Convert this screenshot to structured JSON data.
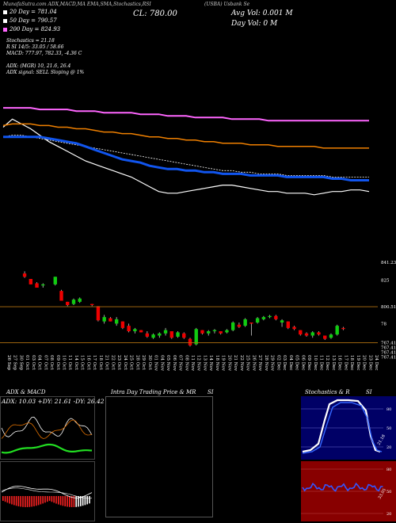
{
  "header": {
    "chart_caption": "(USBA) Usbank Se",
    "stock_label": "USBA",
    "tabs_caption": "MunafaSutra.com ADX,MACD,MA EMA,SMA,Stochastics,RSI",
    "close_text": "CL: 780.00",
    "avg_vol_text": "Avg Vol: 0.001 M",
    "day_vol_text": "Day Vol: 0  M"
  },
  "legend": [
    {
      "text": "20  Day = 781.04",
      "color": "#ffffff"
    },
    {
      "text": "50  Day = 790.57",
      "color": "#ffffff"
    },
    {
      "text": "200  Day = 824.93",
      "color": "#ff66ff"
    }
  ],
  "indicators": {
    "stoch_text": "Stochastics = 21.18",
    "rsi_text": "R                        SI 14/5: 33.05 / 58.66",
    "macd_text": "MACD: 777.97,  782.33,  -4.36  C",
    "adx_text": "ADX:                        (MGR) 10,  21.6,  26.4",
    "adx_signal_text": "ADX  signal: SELL Sloping @ 1%"
  },
  "price_labels": [
    "841.23",
    "825",
    "800.51",
    "78",
    "767.41",
    "767.41",
    "767.41",
    "767.41"
  ],
  "date_labels": [
    "26 Sep",
    "27 Sep",
    "30 Sep",
    "01 Oct",
    "03 Oct",
    "04 Oct",
    "07 Oct",
    "08 Oct",
    "09 Oct",
    "10 Oct",
    "11 Oct",
    "14 Oct",
    "15 Oct",
    "16 Oct",
    "17 Oct",
    "18 Oct",
    "21 Oct",
    "22 Oct",
    "23 Oct",
    "24 Oct",
    "25 Oct",
    "28 Oct",
    "29 Oct",
    "30 Oct",
    "01 Nov",
    "04 Nov",
    "05 Nov",
    "06 Nov",
    "07 Nov",
    "08 Nov",
    "11 Nov",
    "12 Nov",
    "13 Nov",
    "14 Nov",
    "18 Nov",
    "19 Nov",
    "20 Nov",
    "21 Nov",
    "22 Nov",
    "25 Nov",
    "26 Nov",
    "27 Nov",
    "28 Nov",
    "29 Nov",
    "02 Dec",
    "03 Dec",
    "04 Dec",
    "05 Dec",
    "06 Dec",
    "09 Dec",
    "10 Dec",
    "11 Dec",
    "12 Dec",
    "13 Dec",
    "16 Dec",
    "17 Dec",
    "18 Dec",
    "19 Dec",
    "20 Dec",
    "23 Dec",
    "24 Dec"
  ],
  "panels": {
    "adx": {
      "title": "ADX  & MACD",
      "values_text": "ADX: 10.03  +DY: 21.61  -DY: 26.42"
    },
    "intraday": {
      "title": "Intra  Day Trading Price  & MR",
      "si_text": "SI"
    },
    "stoch": {
      "title": "Stochastics  & R",
      "si_text": "SI",
      "level_labels": [
        "80",
        "50",
        "20"
      ],
      "value_label": "21.18",
      "rsi_level_labels": [
        "80",
        "50",
        "20"
      ],
      "rsi_value_label": "33.05"
    }
  },
  "colors": {
    "up": "#11cc11",
    "down": "#ee0000",
    "ma20": "#ffffff",
    "ma50": "#f08000",
    "ma200": "#ee33ee",
    "ma_blue": "#1155ee",
    "stoch_bg": "#000066",
    "rsi_bg": "#880000"
  },
  "chart_data": {
    "type": "candlestick",
    "price_axis_ticks": [
      841.23,
      825,
      800.51,
      78,
      767.41
    ],
    "candles": [
      {
        "date": "01 Oct",
        "open": 831,
        "high": 833,
        "low": 827,
        "close": 828
      },
      {
        "date": "03 Oct",
        "open": 826,
        "high": 826,
        "low": 821,
        "close": 821
      },
      {
        "date": "04 Oct",
        "open": 822,
        "high": 823,
        "low": 818,
        "close": 818
      },
      {
        "date": "07 Oct",
        "open": 820,
        "high": 822,
        "low": 818,
        "close": 821
      },
      {
        "date": "09 Oct",
        "open": 821,
        "high": 828,
        "low": 820,
        "close": 828
      },
      {
        "date": "10 Oct",
        "open": 815,
        "high": 816,
        "low": 806,
        "close": 806
      },
      {
        "date": "11 Oct",
        "open": 805,
        "high": 805,
        "low": 801,
        "close": 802
      },
      {
        "date": "14 Oct",
        "open": 803,
        "high": 808,
        "low": 802,
        "close": 807
      },
      {
        "date": "15 Oct",
        "open": 805,
        "high": 809,
        "low": 804,
        "close": 808
      },
      {
        "date": "17 Oct",
        "open": 803,
        "high": 803,
        "low": 801,
        "close": 802
      },
      {
        "date": "18 Oct",
        "open": 801,
        "high": 801,
        "low": 787,
        "close": 788
      },
      {
        "date": "21 Oct",
        "open": 787,
        "high": 793,
        "low": 785,
        "close": 791
      },
      {
        "date": "22 Oct",
        "open": 790,
        "high": 791,
        "low": 787,
        "close": 787
      },
      {
        "date": "23 Oct",
        "open": 785,
        "high": 791,
        "low": 783,
        "close": 789
      },
      {
        "date": "24 Oct",
        "open": 787,
        "high": 787,
        "low": 780,
        "close": 781
      },
      {
        "date": "25 Oct",
        "open": 783,
        "high": 785,
        "low": 777,
        "close": 778
      },
      {
        "date": "28 Oct",
        "open": 778,
        "high": 781,
        "low": 776,
        "close": 780
      },
      {
        "date": "29 Oct",
        "open": 779,
        "high": 779,
        "low": 777,
        "close": 777
      },
      {
        "date": "30 Oct",
        "open": 776,
        "high": 778,
        "low": 772,
        "close": 773
      },
      {
        "date": "01 Nov",
        "open": 772,
        "high": 776,
        "low": 771,
        "close": 775
      },
      {
        "date": "04 Nov",
        "open": 774,
        "high": 777,
        "low": 772,
        "close": 776
      },
      {
        "date": "05 Nov",
        "open": 776,
        "high": 781,
        "low": 774,
        "close": 779
      },
      {
        "date": "06 Nov",
        "open": 778,
        "high": 778,
        "low": 771,
        "close": 772
      },
      {
        "date": "07 Nov",
        "open": 773,
        "high": 778,
        "low": 772,
        "close": 777
      },
      {
        "date": "08 Nov",
        "open": 776,
        "high": 777,
        "low": 771,
        "close": 772
      },
      {
        "date": "11 Nov",
        "open": 771,
        "high": 772,
        "low": 764,
        "close": 765
      },
      {
        "date": "12 Nov",
        "open": 766,
        "high": 781,
        "low": 765,
        "close": 780
      },
      {
        "date": "13 Nov",
        "open": 779,
        "high": 779,
        "low": 775,
        "close": 776
      },
      {
        "date": "14 Nov",
        "open": 776,
        "high": 779,
        "low": 774,
        "close": 778
      },
      {
        "date": "18 Nov",
        "open": 778,
        "high": 780,
        "low": 776,
        "close": 779
      },
      {
        "date": "19 Nov",
        "open": 778,
        "high": 778,
        "low": 775,
        "close": 776
      },
      {
        "date": "20 Nov",
        "open": 777,
        "high": 780,
        "low": 776,
        "close": 779
      },
      {
        "date": "21 Nov",
        "open": 779,
        "high": 787,
        "low": 778,
        "close": 786
      },
      {
        "date": "22 Nov",
        "open": 784,
        "high": 786,
        "low": 781,
        "close": 782
      },
      {
        "date": "25 Nov",
        "open": 783,
        "high": 790,
        "low": 782,
        "close": 789
      },
      {
        "date": "26 Nov",
        "open": 786,
        "high": 786,
        "low": 774,
        "close": 785
      },
      {
        "date": "27 Nov",
        "open": 786,
        "high": 791,
        "low": 785,
        "close": 790
      },
      {
        "date": "28 Nov",
        "open": 789,
        "high": 792,
        "low": 788,
        "close": 791
      },
      {
        "date": "29 Nov",
        "open": 791,
        "high": 793,
        "low": 790,
        "close": 792
      },
      {
        "date": "02 Dec",
        "open": 792,
        "high": 793,
        "low": 788,
        "close": 789
      },
      {
        "date": "03 Dec",
        "open": 786,
        "high": 789,
        "low": 782,
        "close": 788
      },
      {
        "date": "04 Dec",
        "open": 787,
        "high": 787,
        "low": 780,
        "close": 781
      },
      {
        "date": "05 Dec",
        "open": 782,
        "high": 783,
        "low": 779,
        "close": 780
      },
      {
        "date": "06 Dec",
        "open": 779,
        "high": 779,
        "low": 774,
        "close": 775
      },
      {
        "date": "09 Dec",
        "open": 776,
        "high": 777,
        "low": 773,
        "close": 774
      },
      {
        "date": "10 Dec",
        "open": 774,
        "high": 778,
        "low": 772,
        "close": 777
      },
      {
        "date": "11 Dec",
        "open": 777,
        "high": 778,
        "low": 774,
        "close": 775
      },
      {
        "date": "12 Dec",
        "open": 774,
        "high": 774,
        "low": 770,
        "close": 771
      },
      {
        "date": "13 Dec",
        "open": 772,
        "high": 776,
        "low": 771,
        "close": 775
      },
      {
        "date": "16 Dec",
        "open": 775,
        "high": 784,
        "low": 774,
        "close": 783
      },
      {
        "date": "17 Dec",
        "open": 781,
        "high": 782,
        "low": 779,
        "close": 780
      }
    ],
    "ma_lines": [
      {
        "name": "20 Day",
        "color": "#ffffff",
        "values": [
          821,
          826,
          823,
          820,
          816,
          812,
          809,
          806,
          803,
          800,
          798,
          796,
          794,
          792,
          790,
          787,
          784,
          781,
          780,
          780,
          781,
          782,
          783,
          784,
          785,
          785,
          784,
          783,
          782,
          781,
          781,
          780,
          780,
          780,
          779,
          780,
          781,
          781,
          782,
          782,
          781
        ]
      },
      {
        "name": "50 Day",
        "color": "#ffffff",
        "values": [
          815,
          816,
          816,
          815,
          814,
          813,
          812,
          811,
          810,
          809,
          808,
          807,
          806,
          805,
          804,
          803,
          802,
          801,
          800,
          799,
          798,
          797,
          796,
          795,
          794,
          794,
          793,
          793,
          792,
          792,
          792,
          791,
          791,
          791,
          791,
          791,
          790,
          790,
          790,
          790,
          790
        ]
      },
      {
        "name": "200 Day",
        "color": "#ff66ff",
        "values": [
          833,
          833,
          833,
          833,
          832,
          832,
          832,
          832,
          831,
          831,
          831,
          830,
          830,
          830,
          830,
          829,
          829,
          829,
          828,
          828,
          828,
          827,
          827,
          827,
          827,
          826,
          826,
          826,
          826,
          825,
          825,
          825,
          825,
          825,
          825,
          825,
          825,
          825,
          825,
          825,
          825
        ]
      },
      {
        "name": "orange",
        "color": "#f08000",
        "values": [
          822,
          823,
          823,
          823,
          822,
          822,
          821,
          821,
          820,
          820,
          819,
          818,
          818,
          817,
          817,
          816,
          815,
          815,
          814,
          814,
          813,
          813,
          812,
          812,
          811,
          811,
          811,
          810,
          810,
          810,
          809,
          809,
          809,
          809,
          809,
          808,
          808,
          808,
          808,
          808,
          808
        ]
      },
      {
        "name": "blue",
        "color": "#1155ee",
        "values": [
          815,
          815,
          815,
          815,
          815,
          814,
          813,
          812,
          811,
          809,
          807,
          805,
          803,
          801,
          800,
          799,
          797,
          796,
          795,
          795,
          794,
          794,
          793,
          793,
          792,
          792,
          792,
          791,
          791,
          791,
          791,
          790,
          790,
          790,
          790,
          790,
          789,
          789,
          788,
          788,
          788
        ]
      }
    ]
  }
}
